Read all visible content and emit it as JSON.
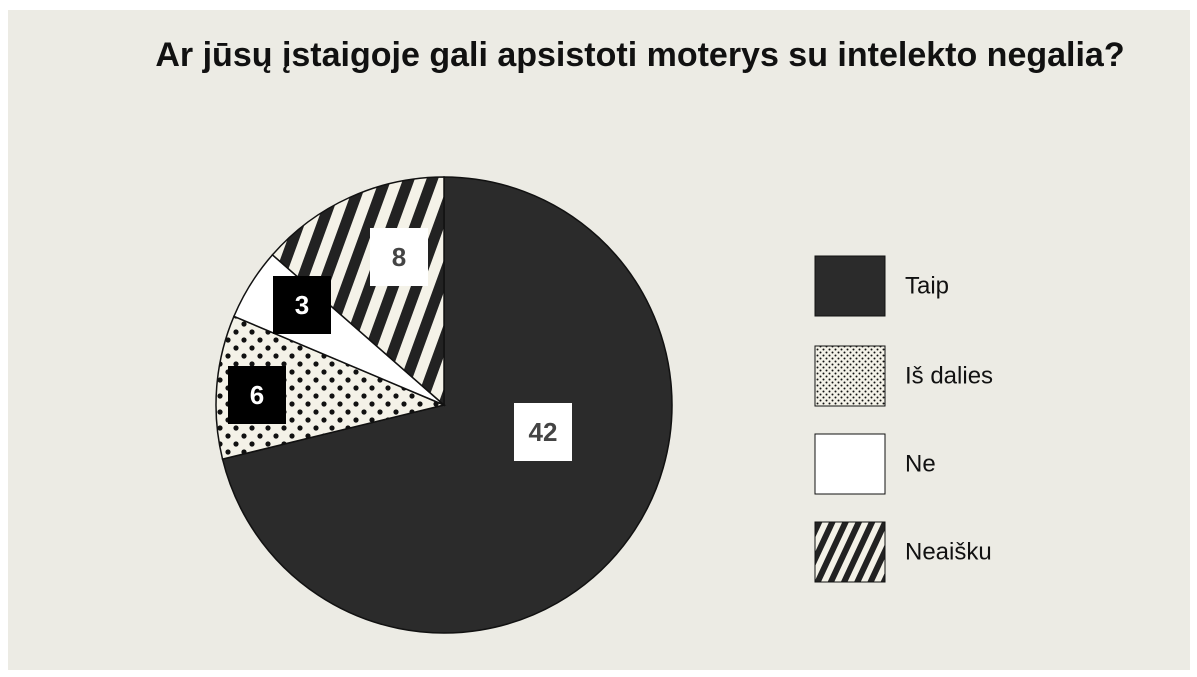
{
  "chart_data": {
    "type": "pie",
    "title": "Ar jūsų įstaigoje gali apsistoti moterys su intelekto negalia?",
    "categories": [
      "Taip",
      "Iš dalies",
      "Ne",
      "Neaišku"
    ],
    "values": [
      42,
      6,
      3,
      8
    ],
    "colors": [
      "#2b2b2b",
      "#f4f2e8",
      "#ffffff",
      "#f4f2e8"
    ],
    "patterns": [
      "solid",
      "dots",
      "solid",
      "stripes"
    ],
    "legend": "right"
  }
}
